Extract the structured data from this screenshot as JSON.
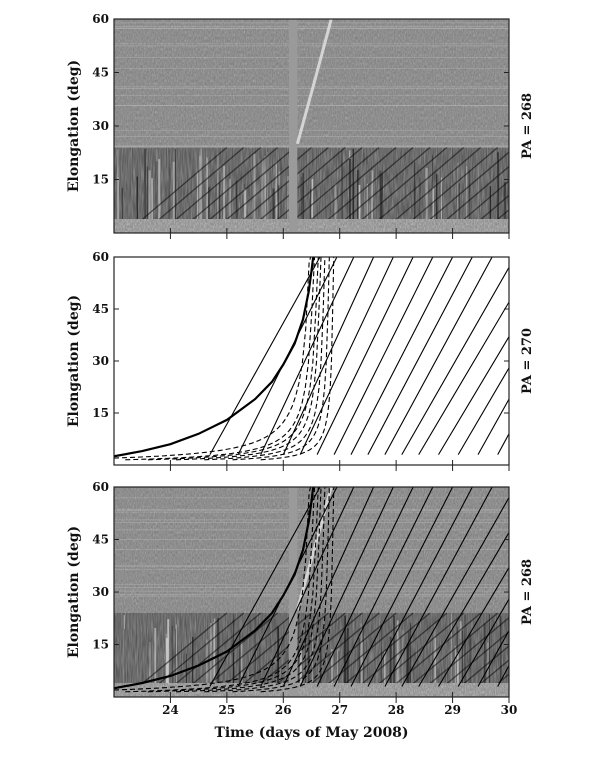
{
  "chart_data": [
    {
      "type": "heatmap",
      "panel": "top",
      "ylabel": "Elongation (deg)",
      "side_label": "PA = 268",
      "xlim": [
        23,
        30
      ],
      "ylim": [
        0,
        60
      ],
      "yticks": [
        15,
        30,
        45,
        60
      ],
      "xticks": [
        24,
        25,
        26,
        27,
        28,
        29,
        30
      ],
      "x_tick_labels_shown": false,
      "background": "grayscale time-elongation map",
      "data_gap_x": [
        26.1,
        26.25
      ],
      "image_boundary_elongation": 24
    },
    {
      "type": "line",
      "panel": "middle",
      "ylabel": "Elongation (deg)",
      "side_label": "PA = 270",
      "xlim": [
        23,
        30
      ],
      "ylim": [
        0,
        60
      ],
      "yticks": [
        15,
        30,
        45,
        60
      ],
      "xticks": [
        24,
        25,
        26,
        27,
        28,
        29,
        30
      ],
      "x_tick_labels_shown": false,
      "series": [
        {
          "style": "solid",
          "envelope": true,
          "asymptote_time": 26.55,
          "points": [
            [
              23.0,
              2.5
            ],
            [
              23.5,
              4.0
            ],
            [
              24.0,
              6.0
            ],
            [
              24.5,
              9.0
            ],
            [
              25.0,
              13.0
            ],
            [
              25.5,
              19.0
            ],
            [
              25.8,
              24.0
            ],
            [
              26.0,
              29.0
            ],
            [
              26.2,
              35.0
            ],
            [
              26.35,
              42.0
            ],
            [
              26.45,
              50.0
            ],
            [
              26.5,
              56.0
            ],
            [
              26.53,
              60.0
            ]
          ]
        },
        {
          "style": "dashed",
          "start": [
            23.0,
            2.0
          ],
          "asymptote_time": 26.58
        },
        {
          "style": "dashed",
          "start": [
            23.2,
            1.5
          ],
          "asymptote_time": 26.62
        },
        {
          "style": "dashed",
          "start": [
            23.6,
            1.5
          ],
          "asymptote_time": 26.68
        },
        {
          "style": "dashed",
          "start": [
            24.1,
            1.5
          ],
          "asymptote_time": 26.72
        },
        {
          "style": "dashed",
          "start": [
            24.6,
            1.5
          ],
          "asymptote_time": 26.78
        },
        {
          "style": "dashed",
          "start": [
            25.1,
            1.5
          ],
          "asymptote_time": 26.85
        },
        {
          "style": "dashed",
          "start": [
            25.6,
            1.5
          ],
          "asymptote_time": 26.92
        },
        {
          "style": "solid",
          "start": [
            24.7,
            3.0
          ],
          "end": [
            26.65,
            60.0
          ]
        },
        {
          "style": "solid",
          "start": [
            25.2,
            3.0
          ],
          "end": [
            26.95,
            60.0
          ]
        },
        {
          "style": "solid",
          "start": [
            25.6,
            3.0
          ],
          "end": [
            27.25,
            60.0
          ]
        },
        {
          "style": "solid",
          "start": [
            26.0,
            3.0
          ],
          "end": [
            27.6,
            60.0
          ]
        },
        {
          "style": "solid",
          "start": [
            26.3,
            3.0
          ],
          "end": [
            27.95,
            60.0
          ]
        },
        {
          "style": "solid",
          "start": [
            26.6,
            3.0
          ],
          "end": [
            28.3,
            60.0
          ]
        },
        {
          "style": "solid",
          "start": [
            26.9,
            3.0
          ],
          "end": [
            28.65,
            60.0
          ]
        },
        {
          "style": "solid",
          "start": [
            27.2,
            3.0
          ],
          "end": [
            29.0,
            60.0
          ]
        },
        {
          "style": "solid",
          "start": [
            27.5,
            3.0
          ],
          "end": [
            29.35,
            60.0
          ]
        },
        {
          "style": "solid",
          "start": [
            27.8,
            3.0
          ],
          "end": [
            29.7,
            60.0
          ]
        },
        {
          "style": "solid",
          "start": [
            28.1,
            3.0
          ],
          "end": [
            30.0,
            57.0
          ]
        },
        {
          "style": "solid",
          "start": [
            28.4,
            3.0
          ],
          "end": [
            30.0,
            47.0
          ]
        },
        {
          "style": "solid",
          "start": [
            28.75,
            3.0
          ],
          "end": [
            30.0,
            37.0
          ]
        },
        {
          "style": "solid",
          "start": [
            29.1,
            3.0
          ],
          "end": [
            30.0,
            28.0
          ]
        },
        {
          "style": "solid",
          "start": [
            29.45,
            3.0
          ],
          "end": [
            30.0,
            19.0
          ]
        },
        {
          "style": "solid",
          "start": [
            29.8,
            3.0
          ],
          "end": [
            30.0,
            9.0
          ]
        }
      ]
    },
    {
      "type": "heatmap",
      "panel": "bottom",
      "ylabel": "Elongation (deg)",
      "side_label": "PA = 268",
      "xlabel": "Time (days of May 2008)",
      "xlim": [
        23,
        30
      ],
      "ylim": [
        0,
        60
      ],
      "yticks": [
        15,
        30,
        45,
        60
      ],
      "xticks": [
        24,
        25,
        26,
        27,
        28,
        29,
        30
      ],
      "x_tick_labels_shown": true,
      "background": "grayscale time-elongation map",
      "overlay": "model curves from middle panel",
      "data_gap_x": [
        26.1,
        26.25
      ],
      "image_boundary_elongation": 24
    }
  ],
  "colors": {
    "frame": "#222222",
    "curve": "#000000",
    "background_dark": "#1a1a1a",
    "background_mid": "#7d7d7d",
    "background_light": "#c8c8c8"
  }
}
